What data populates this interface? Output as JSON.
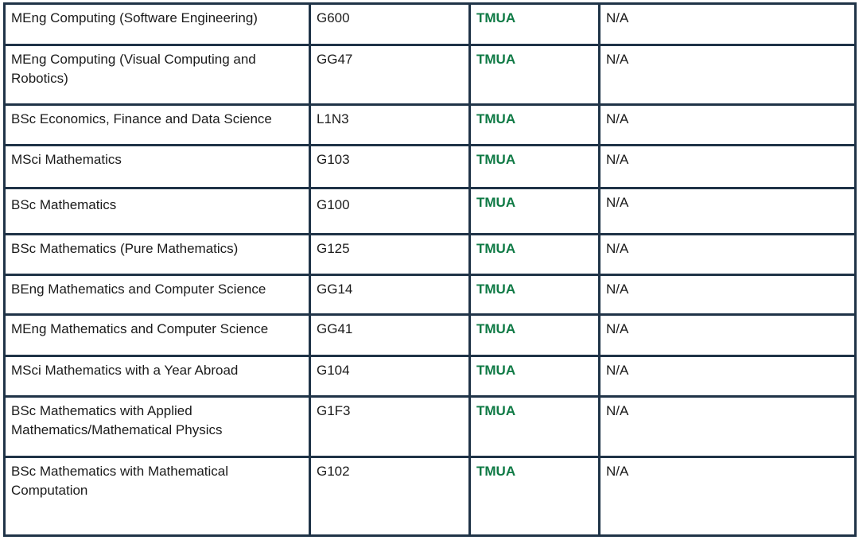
{
  "table": {
    "rows": [
      {
        "course": "MEng Computing (Software Engineering)",
        "code": "G600",
        "test": "TMUA",
        "note": "N/A"
      },
      {
        "course": "MEng Computing (Visual Computing and Robotics)",
        "code": "GG47",
        "test": "TMUA",
        "note": "N/A"
      },
      {
        "course": "BSc Economics, Finance and Data Science",
        "code": "L1N3",
        "test": "TMUA",
        "note": "N/A"
      },
      {
        "course": "MSci Mathematics",
        "code": "G103",
        "test": "TMUA",
        "note": "N/A"
      },
      {
        "course": "BSc Mathematics",
        "code": "G100",
        "test": "TMUA",
        "note": "N/A"
      },
      {
        "course": "BSc Mathematics (Pure Mathematics)",
        "code": "G125",
        "test": "TMUA",
        "note": "N/A"
      },
      {
        "course": "BEng Mathematics and Computer Science",
        "code": "GG14",
        "test": "TMUA",
        "note": "N/A"
      },
      {
        "course": "MEng Mathematics and Computer Science",
        "code": "GG41",
        "test": "TMUA",
        "note": "N/A"
      },
      {
        "course": "MSci Mathematics with a Year Abroad",
        "code": "G104",
        "test": "TMUA",
        "note": "N/A"
      },
      {
        "course": "BSc Mathematics with Applied Mathematics/Mathematical Physics",
        "code": "G1F3",
        "test": "TMUA",
        "note": "N/A"
      },
      {
        "course": "BSc Mathematics with Mathematical Computation",
        "code": "G102",
        "test": "TMUA",
        "note": "N/A"
      }
    ]
  },
  "colors": {
    "border": "#1f3347",
    "test_text": "#0f7a45",
    "body_text": "#1b1b1b"
  }
}
